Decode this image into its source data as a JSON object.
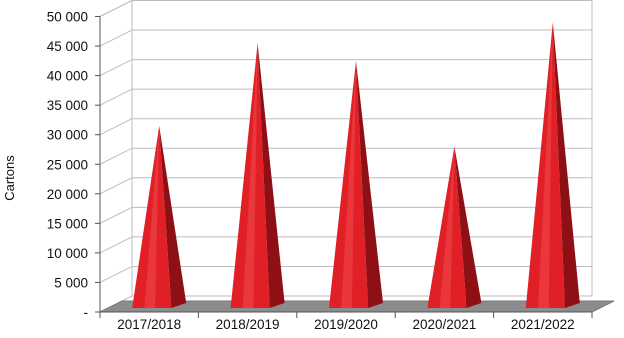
{
  "chart_data": {
    "type": "bar",
    "style": "3d-pyramid",
    "categories": [
      "2017/2018",
      "2018/2019",
      "2019/2020",
      "2020/2021",
      "2021/2022"
    ],
    "series": [
      {
        "values": [
          31500,
          45500,
          42500,
          28000,
          49000
        ]
      }
    ],
    "ylabel": "Cartons",
    "xlabel": "",
    "ylim": [
      0,
      50000
    ],
    "yticks": [
      0,
      5000,
      10000,
      15000,
      20000,
      25000,
      30000,
      35000,
      40000,
      45000,
      50000
    ],
    "ytick_labels": [
      "-",
      "5 000",
      "10 000",
      "15 000",
      "20 000",
      "25 000",
      "30 000",
      "35 000",
      "40 000",
      "45 000",
      "50 000"
    ],
    "grid": true,
    "legend": "none",
    "colors": {
      "bar_front": "#e01f26",
      "bar_side": "#8f1014",
      "bar_highlight": "#f04a4f",
      "floor": "#8c8c8c",
      "grid": "#bdbdbd",
      "wall": "#ffffff"
    }
  }
}
